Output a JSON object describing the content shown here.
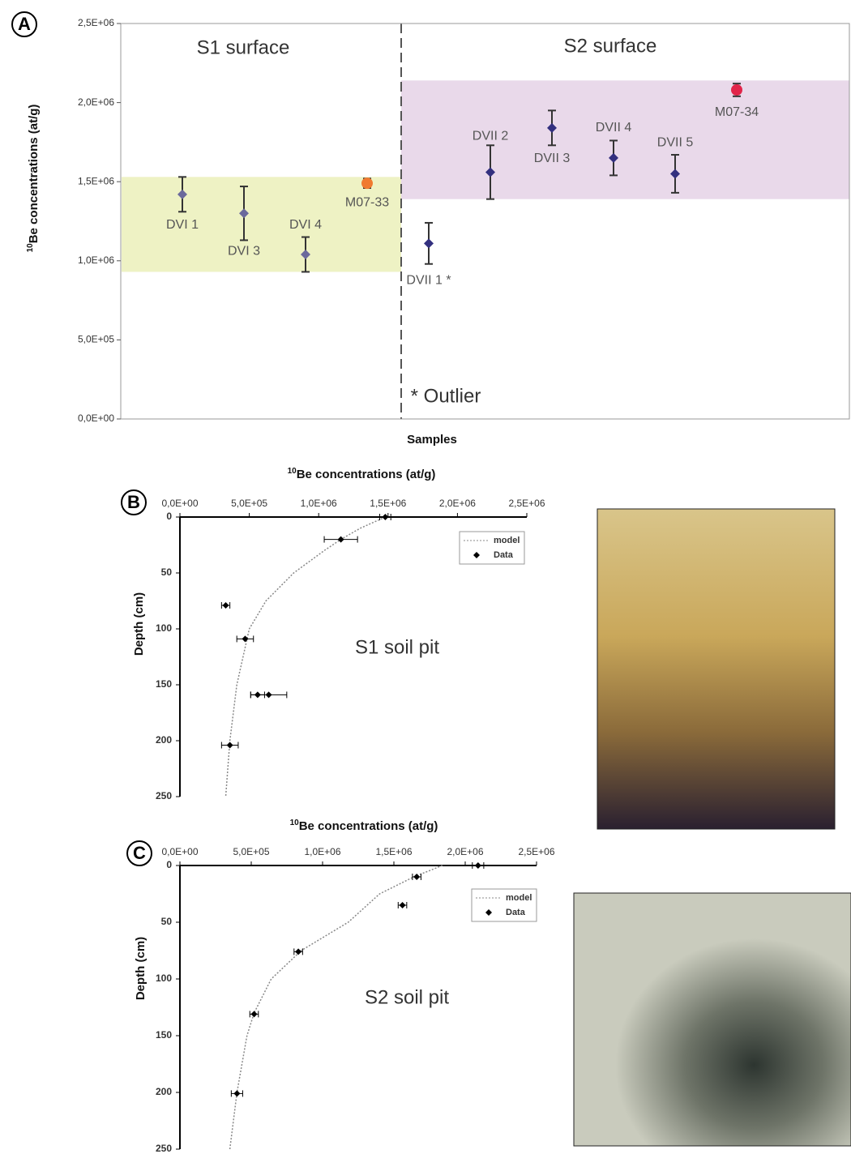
{
  "chart_data": [
    {
      "type": "errorbar",
      "panel": "A",
      "ylabel_sup": "10",
      "ylabel": "Be concentrations (at/g)",
      "xlabel": "Samples",
      "annotation": "* Outlier",
      "bands": [
        {
          "name": "S1 surface",
          "range": [
            930000,
            1530000
          ],
          "color": "#eef2c4"
        },
        {
          "name": "S2 surface",
          "range": [
            1390000,
            2140000
          ],
          "color": "#e9d9ea"
        }
      ],
      "categories": [
        "DVI 1",
        "DVI 3",
        "DVI 4",
        "M07-33",
        "DVII 1 *",
        "DVII 2",
        "DVII 3",
        "DVII 4",
        "DVII 5",
        "M07-34"
      ],
      "values": [
        1420000,
        1300000,
        1040000,
        1490000,
        1110000,
        1560000,
        1840000,
        1650000,
        1550000,
        2080000
      ],
      "errors": [
        110000,
        170000,
        110000,
        30000,
        130000,
        170000,
        110000,
        110000,
        120000,
        40000
      ],
      "colors": [
        "#6b6a9c",
        "#6b6a9c",
        "#6b6a9c",
        "#f07a30",
        "#33307f",
        "#33307f",
        "#33307f",
        "#33307f",
        "#33307f",
        "#e2254a"
      ],
      "markers": [
        "diamond",
        "diamond",
        "diamond",
        "circle",
        "diamond",
        "diamond",
        "diamond",
        "diamond",
        "diamond",
        "circle"
      ],
      "ylim": [
        0,
        2500000
      ],
      "yticks": [
        {
          "value": 0,
          "label": "0,0E+00"
        },
        {
          "value": 500000,
          "label": "5,0E+05"
        },
        {
          "value": 1000000,
          "label": "1,0E+06"
        },
        {
          "value": 1500000,
          "label": "1,5E+06"
        },
        {
          "value": 2000000,
          "label": "2,0E+06"
        },
        {
          "value": 2500000,
          "label": "2,5E+06"
        }
      ]
    },
    {
      "type": "depth-profile",
      "panel": "B",
      "title_sup": "10",
      "title": "Be concentrations (at/g)",
      "ylabel": "Depth (cm)",
      "annotation": "S1 soil pit",
      "xlim": [
        0,
        2500000
      ],
      "xticks": [
        {
          "value": 0,
          "label": "0,0E+00"
        },
        {
          "value": 500000,
          "label": "5,0E+05"
        },
        {
          "value": 1000000,
          "label": "1,0E+06"
        },
        {
          "value": 1500000,
          "label": "1,5E+06"
        },
        {
          "value": 2000000,
          "label": "2,0E+06"
        },
        {
          "value": 2500000,
          "label": "2,5E+06"
        }
      ],
      "ylim": [
        0,
        250
      ],
      "yticks": [
        0,
        50,
        100,
        150,
        200,
        250
      ],
      "series": [
        {
          "name": "model",
          "color": "#888888",
          "style": "dotted",
          "x": [
            1480000,
            1300000,
            1160000,
            1040000,
            820000,
            620000,
            500000,
            410000,
            360000,
            330000
          ],
          "y": [
            0,
            10,
            20,
            30,
            50,
            75,
            100,
            150,
            200,
            250
          ]
        },
        {
          "name": "Data",
          "color": "#000000",
          "style": "diamond",
          "x": [
            1480000,
            1160000,
            330000,
            470000,
            560000,
            640000,
            360000
          ],
          "y": [
            0,
            20,
            79,
            109,
            159,
            159,
            204
          ],
          "xerr": [
            40000,
            120000,
            30000,
            60000,
            50000,
            130000,
            60000
          ]
        }
      ]
    },
    {
      "type": "depth-profile",
      "panel": "C",
      "title_sup": "10",
      "title": "Be concentrations (at/g)",
      "ylabel": "Depth (cm)",
      "annotation": "S2 soil pit",
      "xlim": [
        0,
        2500000
      ],
      "xticks": [
        {
          "value": 0,
          "label": "0,0E+00"
        },
        {
          "value": 500000,
          "label": "5,0E+05"
        },
        {
          "value": 1000000,
          "label": "1,0E+06"
        },
        {
          "value": 1500000,
          "label": "1,5E+06"
        },
        {
          "value": 2000000,
          "label": "2,0E+06"
        },
        {
          "value": 2500000,
          "label": "2,5E+06"
        }
      ],
      "ylim": [
        0,
        250
      ],
      "yticks": [
        0,
        50,
        100,
        150,
        200,
        250
      ],
      "series": [
        {
          "name": "model",
          "color": "#888888",
          "style": "dotted",
          "x": [
            1840000,
            1640000,
            1400000,
            1180000,
            850000,
            640000,
            520000,
            470000,
            400000,
            350000
          ],
          "y": [
            0,
            10,
            25,
            50,
            75,
            100,
            130,
            150,
            200,
            250
          ]
        },
        {
          "name": "Data",
          "color": "#000000",
          "style": "diamond",
          "x": [
            2090000,
            1660000,
            1560000,
            830000,
            520000,
            400000
          ],
          "y": [
            0,
            10,
            35,
            76,
            131,
            201
          ],
          "xerr": [
            40000,
            30000,
            30000,
            30000,
            30000,
            40000
          ]
        }
      ]
    }
  ]
}
